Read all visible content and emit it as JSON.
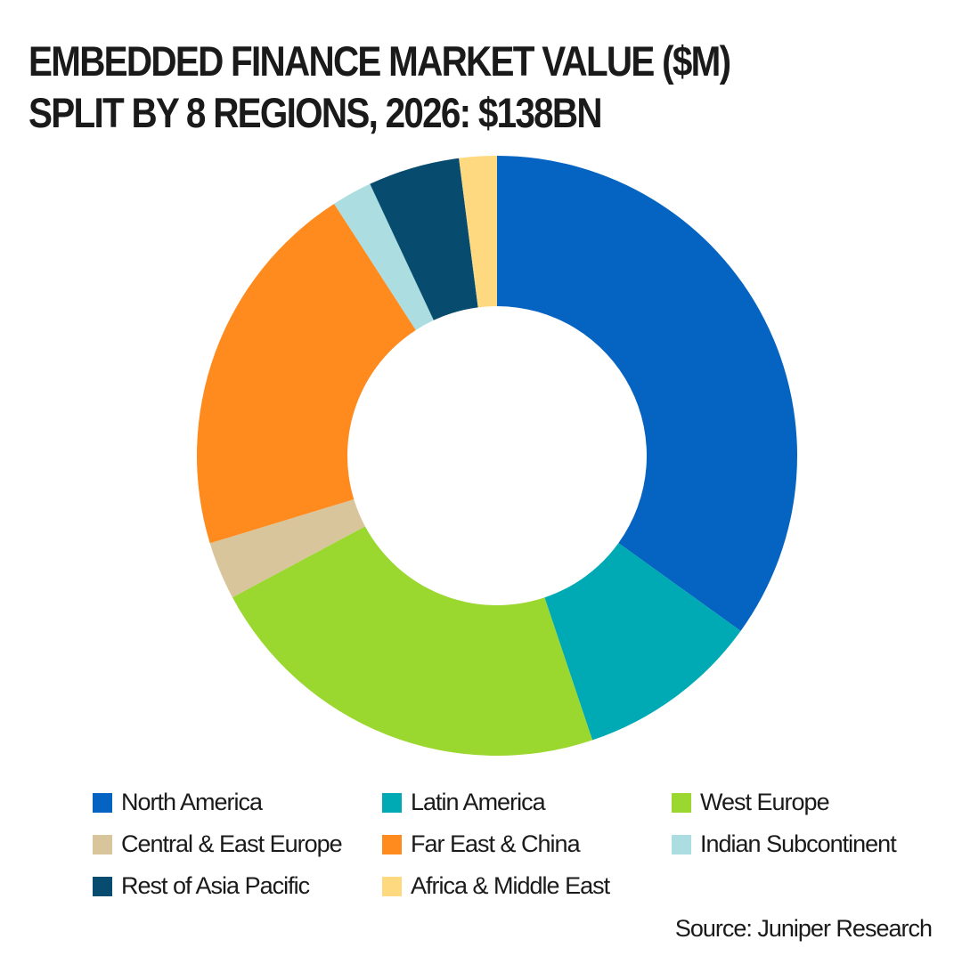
{
  "chart_data": {
    "type": "donut",
    "title": "EMBEDDED FINANCE MARKET VALUE ($M) SPLIT BY 8 REGIONS, 2026: $138BN",
    "categories": [
      "North America",
      "Latin America",
      "West Europe",
      "Central & East Europe",
      "Far East & China",
      "Indian Subcontinent",
      "Rest of Asia Pacific",
      "Africa & Middle East"
    ],
    "values": [
      48200,
      13700,
      30800,
      4300,
      28400,
      3000,
      6800,
      2800
    ],
    "colors": [
      "#0563c1",
      "#00aab5",
      "#9ad72f",
      "#d8c59c",
      "#ff8a1e",
      "#acdde0",
      "#074b6e",
      "#fed97f"
    ],
    "source": "Source: Juniper Research"
  }
}
